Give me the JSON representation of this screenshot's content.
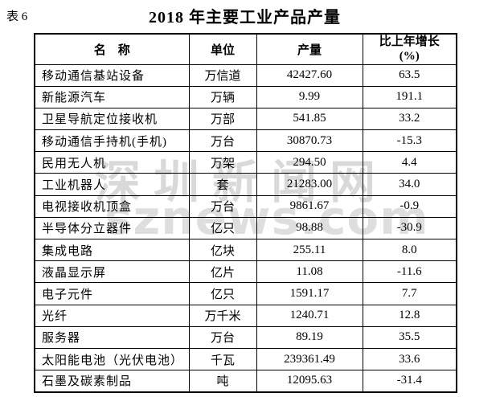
{
  "page": {
    "table_label": "表 6",
    "title": "2018 年主要工业产品产量",
    "ink_color": "#000000",
    "background_color": "#ffffff"
  },
  "watermark": {
    "line1": "深圳新闻网",
    "line2": "sznews.com",
    "color": "#d9d9d9"
  },
  "table": {
    "headers": {
      "name": "名　称",
      "unit": "单位",
      "output": "产量",
      "growth_line1": "比上年增长",
      "growth_line2": "(%)"
    },
    "rows": [
      {
        "name": "移动通信基站设备",
        "unit": "万信道",
        "output": "42427.60",
        "growth": "63.5"
      },
      {
        "name": "新能源汽车",
        "unit": "万辆",
        "output": "9.99",
        "growth": "191.1"
      },
      {
        "name": "卫星导航定位接收机",
        "unit": "万部",
        "output": "541.85",
        "growth": "33.2"
      },
      {
        "name": "移动通信手持机(手机)",
        "unit": "万台",
        "output": "30870.73",
        "growth": "-15.3"
      },
      {
        "name": "民用无人机",
        "unit": "万架",
        "output": "294.50",
        "growth": "4.4"
      },
      {
        "name": "工业机器人",
        "unit": "套",
        "output": "21283.00",
        "growth": "34.0"
      },
      {
        "name": "电视接收机顶盒",
        "unit": "万台",
        "output": "9861.67",
        "growth": "-0.9"
      },
      {
        "name": "半导体分立器件",
        "unit": "亿只",
        "output": "98.88",
        "growth": "-30.9"
      },
      {
        "name": "集成电路",
        "unit": "亿块",
        "output": "255.11",
        "growth": "8.0"
      },
      {
        "name": "液晶显示屏",
        "unit": "亿片",
        "output": "11.08",
        "growth": "-11.6"
      },
      {
        "name": "电子元件",
        "unit": "亿只",
        "output": "1591.17",
        "growth": "7.7"
      },
      {
        "name": "光纤",
        "unit": "万千米",
        "output": "1240.71",
        "growth": "12.8"
      },
      {
        "name": "服务器",
        "unit": "万台",
        "output": "89.19",
        "growth": "35.5"
      },
      {
        "name": "太阳能电池（光伏电池）",
        "unit": "千瓦",
        "output": "239361.49",
        "growth": "33.6"
      },
      {
        "name": "石墨及碳素制品",
        "unit": "吨",
        "output": "12095.63",
        "growth": "-31.4"
      }
    ]
  }
}
